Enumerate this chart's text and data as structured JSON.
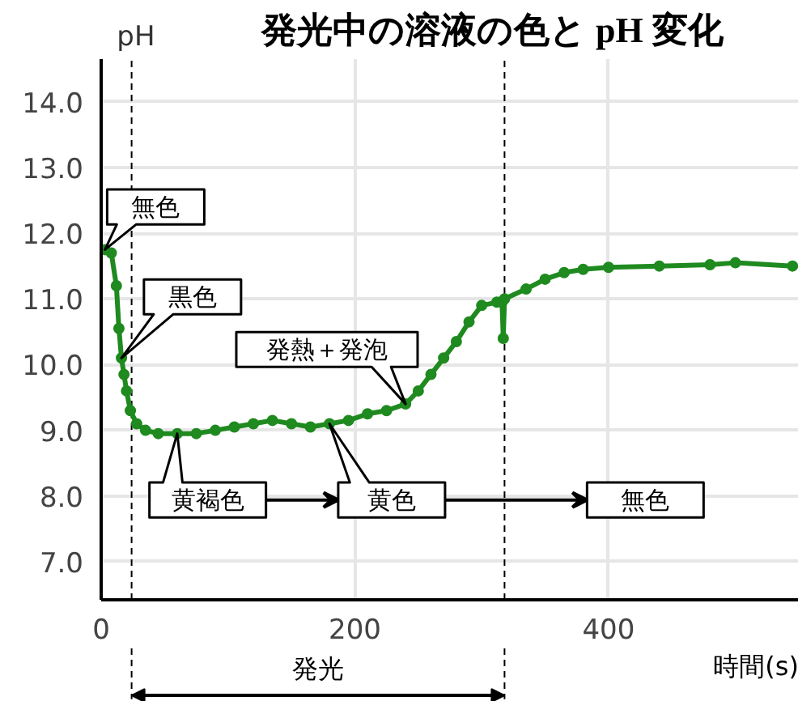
{
  "chart_data": {
    "type": "line",
    "title": "発光中の溶液の色と pH 変化",
    "xlabel": "時間(s)",
    "ylabel": "pH",
    "x": [
      3,
      8,
      12,
      14,
      16,
      18,
      20,
      23,
      28,
      35,
      45,
      60,
      75,
      90,
      105,
      120,
      135,
      150,
      165,
      180,
      195,
      210,
      225,
      240,
      250,
      260,
      270,
      280,
      290,
      300,
      312,
      316,
      317,
      318,
      335,
      350,
      365,
      380,
      400,
      440,
      480,
      500,
      545
    ],
    "series": [
      {
        "color": "#1f8a1f",
        "values": [
          11.75,
          11.7,
          11.2,
          10.55,
          10.1,
          9.85,
          9.6,
          9.3,
          9.1,
          9.0,
          8.95,
          8.95,
          8.95,
          9.0,
          9.05,
          9.1,
          9.15,
          9.1,
          9.05,
          9.1,
          9.15,
          9.25,
          9.3,
          9.4,
          9.6,
          9.85,
          10.1,
          10.35,
          10.65,
          10.9,
          10.95,
          10.95,
          10.4,
          11.0,
          11.15,
          11.3,
          11.4,
          11.45,
          11.48,
          11.5,
          11.52,
          11.55,
          11.5
        ]
      }
    ],
    "xlim": [
      0,
      550
    ],
    "ylim": [
      6.42,
      14.65
    ],
    "xticks": [
      0,
      200,
      400
    ],
    "yticks": [
      {
        "value": 7,
        "label": "7.0"
      },
      {
        "value": 8,
        "label": "8.0"
      },
      {
        "value": 9,
        "label": "9.0"
      },
      {
        "value": 10,
        "label": "10.0"
      },
      {
        "value": 11,
        "label": "11.0"
      },
      {
        "value": 12,
        "label": "12.0"
      },
      {
        "value": 13,
        "label": "13.0"
      },
      {
        "value": 14,
        "label": "14.0"
      }
    ],
    "ref_lines": [
      {
        "axis": "x",
        "value": 24,
        "line_style": "dashed"
      },
      {
        "axis": "x",
        "value": 318,
        "line_style": "dashed"
      }
    ],
    "annotations": [
      {
        "text": "無色",
        "x": 3,
        "y": 11.75
      },
      {
        "text": "黒色",
        "x": 16,
        "y": 10.1
      },
      {
        "text": "発熱＋発泡",
        "x": 240,
        "y": 9.4
      },
      {
        "text": "黄褐色",
        "x": 60,
        "y": 8.95
      },
      {
        "text": "黄色",
        "x": 180,
        "y": 9.1
      },
      "無色",
      "発光"
    ],
    "grid": true,
    "marker": "circle",
    "line_style": "solid"
  }
}
